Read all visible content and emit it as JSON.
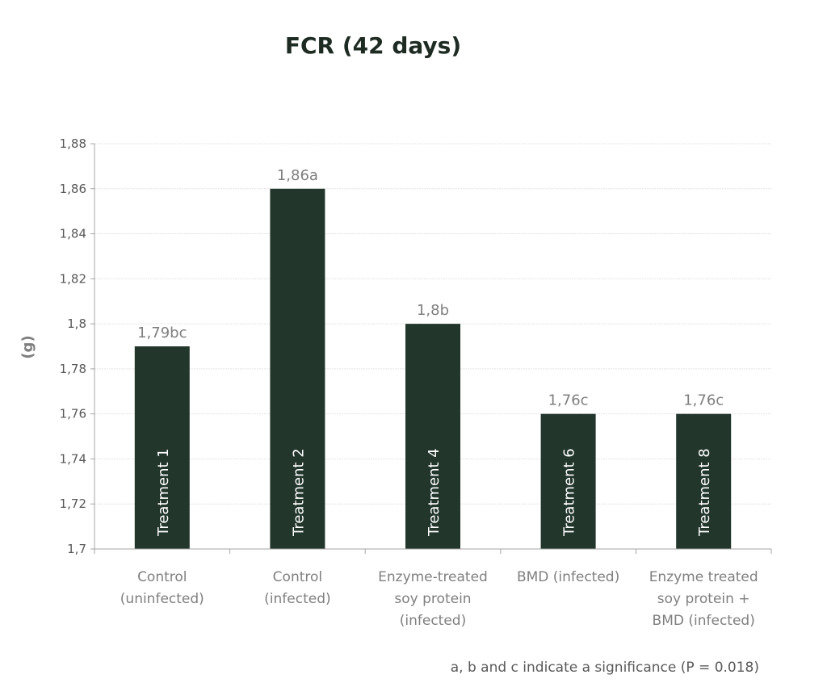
{
  "chart_data": {
    "type": "bar",
    "title": "FCR (42 days)",
    "ylabel": "(g)",
    "xlabel": "",
    "ylim": [
      1.7,
      1.88
    ],
    "ytick_step": 0.02,
    "ytick_labels": [
      "1,7",
      "1,72",
      "1,74",
      "1,76",
      "1,78",
      "1,8",
      "1,82",
      "1,84",
      "1,86",
      "1,88"
    ],
    "grid": true,
    "categories": [
      [
        "Control",
        "(uninfected)"
      ],
      [
        "Control",
        "(infected)"
      ],
      [
        "Enzyme-treated",
        "soy protein",
        "(infected)"
      ],
      [
        "BMD (infected)"
      ],
      [
        "Enzyme treated",
        "soy protein +",
        "BMD (infected)"
      ]
    ],
    "values": [
      1.79,
      1.86,
      1.8,
      1.76,
      1.76
    ],
    "data_labels": [
      "1,79bc",
      "1,86a",
      "1,8b",
      "1,76c",
      "1,76c"
    ],
    "bar_labels": [
      "Treatment 1",
      "Treatment 2",
      "Treatment 4",
      "Treatment 6",
      "Treatment 8"
    ],
    "bar_color": "#22362c",
    "annotation": "a, b and c indicate a significance (P = 0.018)"
  }
}
